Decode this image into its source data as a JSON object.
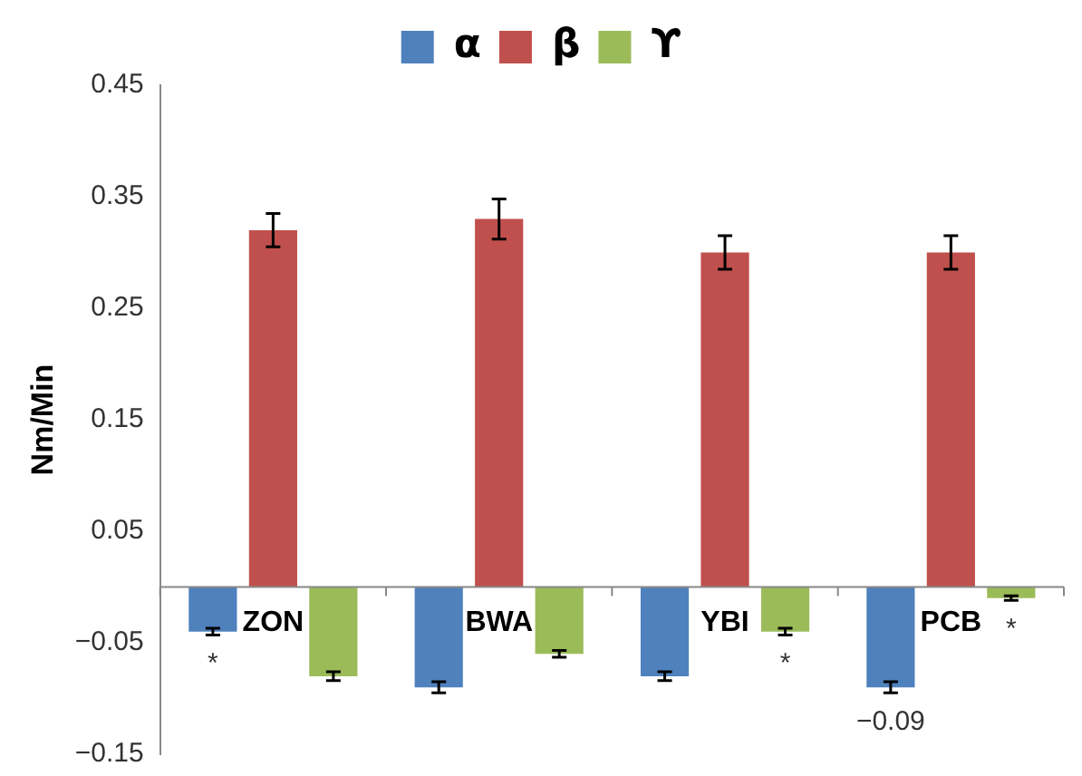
{
  "chart_data": {
    "type": "bar",
    "ylabel": "Nm/Min",
    "categories": [
      "ZON",
      "BWA",
      "YBI",
      "PCB"
    ],
    "series": [
      {
        "name": "α",
        "color": "#4f81bd",
        "values": [
          -0.04,
          -0.09,
          -0.08,
          -0.09
        ],
        "errors": [
          0.003,
          0.005,
          0.004,
          0.005
        ],
        "value_labels": [
          "*",
          null,
          null,
          "−0.09"
        ]
      },
      {
        "name": "β",
        "color": "#c0504d",
        "values": [
          0.32,
          0.33,
          0.3,
          0.3
        ],
        "errors": [
          0.015,
          0.018,
          0.015,
          0.015
        ]
      },
      {
        "name": "ϒ",
        "color": "#9bbb59",
        "values": [
          -0.08,
          -0.06,
          -0.04,
          -0.01
        ],
        "errors": [
          0.004,
          0.003,
          0.003,
          0.002
        ],
        "value_labels": [
          null,
          null,
          "*",
          "*"
        ]
      }
    ],
    "ylim": [
      -0.15,
      0.45
    ],
    "yticks": [
      {
        "value": -0.15,
        "label": "−0.15"
      },
      {
        "value": -0.05,
        "label": "−0.05"
      },
      0.05,
      0.15,
      0.25,
      0.35,
      0.45
    ],
    "grid": false,
    "legend": "top"
  }
}
